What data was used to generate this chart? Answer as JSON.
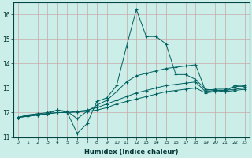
{
  "xlabel": "Humidex (Indice chaleur)",
  "background_color": "#cceee8",
  "grid_color": "#c8a8a8",
  "line_color": "#006060",
  "xlim": [
    -0.5,
    23.5
  ],
  "ylim": [
    11,
    16.5
  ],
  "yticks": [
    11,
    12,
    13,
    14,
    15,
    16
  ],
  "xticks": [
    0,
    1,
    2,
    3,
    4,
    5,
    6,
    7,
    8,
    9,
    10,
    11,
    12,
    13,
    14,
    15,
    16,
    17,
    18,
    19,
    20,
    21,
    22,
    23
  ],
  "series": [
    [
      11.8,
      11.9,
      11.95,
      11.95,
      12.1,
      12.0,
      11.15,
      11.55,
      12.45,
      12.6,
      13.1,
      14.7,
      16.2,
      15.1,
      15.1,
      14.8,
      13.55,
      13.55,
      13.35,
      12.95,
      12.9,
      12.85,
      13.1,
      13.05
    ],
    [
      11.8,
      11.9,
      11.95,
      12.0,
      12.1,
      12.05,
      11.75,
      12.05,
      12.3,
      12.5,
      12.85,
      13.25,
      13.5,
      13.6,
      13.7,
      13.8,
      13.85,
      13.9,
      13.95,
      12.9,
      12.95,
      12.95,
      13.05,
      13.1
    ],
    [
      11.8,
      11.85,
      11.9,
      11.95,
      12.0,
      12.0,
      12.05,
      12.1,
      12.2,
      12.35,
      12.5,
      12.65,
      12.8,
      12.9,
      13.0,
      13.1,
      13.15,
      13.2,
      13.25,
      12.85,
      12.9,
      12.9,
      12.95,
      13.0
    ],
    [
      11.8,
      11.85,
      11.9,
      11.95,
      12.0,
      12.0,
      12.02,
      12.05,
      12.1,
      12.2,
      12.35,
      12.45,
      12.55,
      12.65,
      12.75,
      12.85,
      12.9,
      12.95,
      13.0,
      12.8,
      12.85,
      12.85,
      12.9,
      12.95
    ]
  ]
}
